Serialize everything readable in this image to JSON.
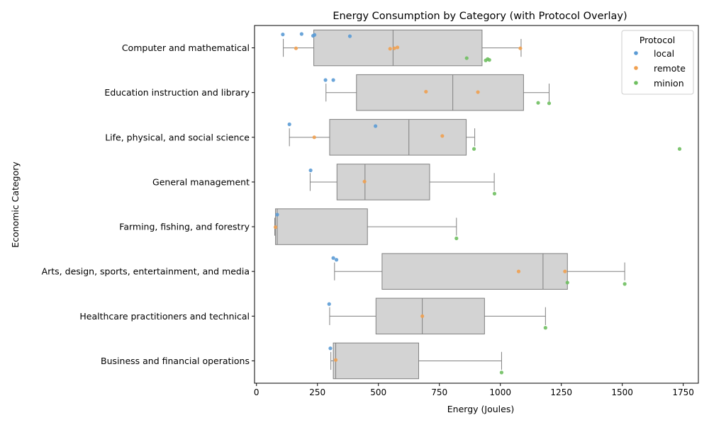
{
  "chart_data": {
    "type": "box",
    "title": "Energy Consumption by Category (with Protocol Overlay)",
    "xlabel": "Energy (Joules)",
    "ylabel": "Economic Category",
    "xlim": [
      -8,
      1812
    ],
    "xticks": [
      0,
      250,
      500,
      750,
      1000,
      1250,
      1500,
      1750
    ],
    "grid": false,
    "legend": {
      "title": "Protocol",
      "placement": "top-right",
      "entries": [
        {
          "name": "local",
          "color": "#5b9bd5"
        },
        {
          "name": "remote",
          "color": "#f0a050"
        },
        {
          "name": "minion",
          "color": "#6fbf60"
        }
      ]
    },
    "box_style": {
      "fill": "#d3d3d3",
      "edge": "#808080"
    },
    "categories": [
      "Computer and mathematical",
      "Education instruction and library",
      "Life, physical, and social science",
      "General management",
      "Farming, fishing, and forestry",
      "Arts, design, sports, entertainment, and media",
      "Healthcare practitioners and technical",
      "Business and financial operations"
    ],
    "boxes": [
      {
        "whislo": 110,
        "q1": 235,
        "med": 560,
        "q3": 925,
        "whishi": 1085
      },
      {
        "whislo": 285,
        "q1": 410,
        "med": 805,
        "q3": 1095,
        "whishi": 1200
      },
      {
        "whislo": 135,
        "q1": 300,
        "med": 625,
        "q3": 860,
        "whishi": 895
      },
      {
        "whislo": 220,
        "q1": 330,
        "med": 445,
        "q3": 710,
        "whishi": 975
      },
      {
        "whislo": 75,
        "q1": 78,
        "med": 85,
        "q3": 455,
        "whishi": 820
      },
      {
        "whislo": 320,
        "q1": 515,
        "med": 1175,
        "q3": 1275,
        "whishi": 1510
      },
      {
        "whislo": 300,
        "q1": 490,
        "med": 680,
        "q3": 935,
        "whishi": 1185
      },
      {
        "whislo": 305,
        "q1": 315,
        "med": 325,
        "q3": 665,
        "whishi": 1005
      }
    ],
    "points": [
      {
        "category": 0,
        "protocol": "local",
        "x": 108,
        "jitter": -0.3
      },
      {
        "category": 0,
        "protocol": "local",
        "x": 185,
        "jitter": -0.31
      },
      {
        "category": 0,
        "protocol": "local",
        "x": 232,
        "jitter": -0.27
      },
      {
        "category": 0,
        "protocol": "local",
        "x": 238,
        "jitter": -0.29
      },
      {
        "category": 0,
        "protocol": "local",
        "x": 383,
        "jitter": -0.26
      },
      {
        "category": 0,
        "protocol": "remote",
        "x": 162,
        "jitter": 0.01
      },
      {
        "category": 0,
        "protocol": "remote",
        "x": 548,
        "jitter": 0.02
      },
      {
        "category": 0,
        "protocol": "remote",
        "x": 565,
        "jitter": 0.01
      },
      {
        "category": 0,
        "protocol": "remote",
        "x": 578,
        "jitter": -0.01
      },
      {
        "category": 0,
        "protocol": "remote",
        "x": 1082,
        "jitter": 0.01
      },
      {
        "category": 0,
        "protocol": "minion",
        "x": 862,
        "jitter": 0.23
      },
      {
        "category": 0,
        "protocol": "minion",
        "x": 940,
        "jitter": 0.28
      },
      {
        "category": 0,
        "protocol": "minion",
        "x": 948,
        "jitter": 0.25
      },
      {
        "category": 0,
        "protocol": "minion",
        "x": 955,
        "jitter": 0.27
      },
      {
        "category": 1,
        "protocol": "local",
        "x": 283,
        "jitter": -0.28
      },
      {
        "category": 1,
        "protocol": "local",
        "x": 315,
        "jitter": -0.28
      },
      {
        "category": 1,
        "protocol": "remote",
        "x": 695,
        "jitter": -0.02
      },
      {
        "category": 1,
        "protocol": "remote",
        "x": 908,
        "jitter": -0.01
      },
      {
        "category": 1,
        "protocol": "minion",
        "x": 1155,
        "jitter": 0.23
      },
      {
        "category": 1,
        "protocol": "minion",
        "x": 1200,
        "jitter": 0.24
      },
      {
        "category": 2,
        "protocol": "local",
        "x": 135,
        "jitter": -0.29
      },
      {
        "category": 2,
        "protocol": "local",
        "x": 488,
        "jitter": -0.25
      },
      {
        "category": 2,
        "protocol": "remote",
        "x": 237,
        "jitter": 0.0
      },
      {
        "category": 2,
        "protocol": "remote",
        "x": 762,
        "jitter": -0.03
      },
      {
        "category": 2,
        "protocol": "minion",
        "x": 892,
        "jitter": 0.26
      },
      {
        "category": 2,
        "protocol": "minion",
        "x": 1735,
        "jitter": 0.26
      },
      {
        "category": 3,
        "protocol": "local",
        "x": 222,
        "jitter": -0.26
      },
      {
        "category": 3,
        "protocol": "remote",
        "x": 443,
        "jitter": -0.01
      },
      {
        "category": 3,
        "protocol": "minion",
        "x": 976,
        "jitter": 0.26
      },
      {
        "category": 4,
        "protocol": "local",
        "x": 85,
        "jitter": -0.27
      },
      {
        "category": 4,
        "protocol": "remote",
        "x": 78,
        "jitter": 0.01
      },
      {
        "category": 4,
        "protocol": "minion",
        "x": 820,
        "jitter": 0.26
      },
      {
        "category": 5,
        "protocol": "local",
        "x": 315,
        "jitter": -0.3
      },
      {
        "category": 5,
        "protocol": "local",
        "x": 328,
        "jitter": -0.26
      },
      {
        "category": 5,
        "protocol": "remote",
        "x": 1075,
        "jitter": 0.0
      },
      {
        "category": 5,
        "protocol": "remote",
        "x": 1265,
        "jitter": 0.0
      },
      {
        "category": 5,
        "protocol": "minion",
        "x": 1275,
        "jitter": 0.25
      },
      {
        "category": 5,
        "protocol": "minion",
        "x": 1510,
        "jitter": 0.28
      },
      {
        "category": 6,
        "protocol": "local",
        "x": 298,
        "jitter": -0.27
      },
      {
        "category": 6,
        "protocol": "remote",
        "x": 680,
        "jitter": 0.0
      },
      {
        "category": 6,
        "protocol": "minion",
        "x": 1185,
        "jitter": 0.26
      },
      {
        "category": 7,
        "protocol": "local",
        "x": 303,
        "jitter": -0.28
      },
      {
        "category": 7,
        "protocol": "remote",
        "x": 325,
        "jitter": -0.02
      },
      {
        "category": 7,
        "protocol": "minion",
        "x": 1005,
        "jitter": 0.26
      }
    ]
  }
}
